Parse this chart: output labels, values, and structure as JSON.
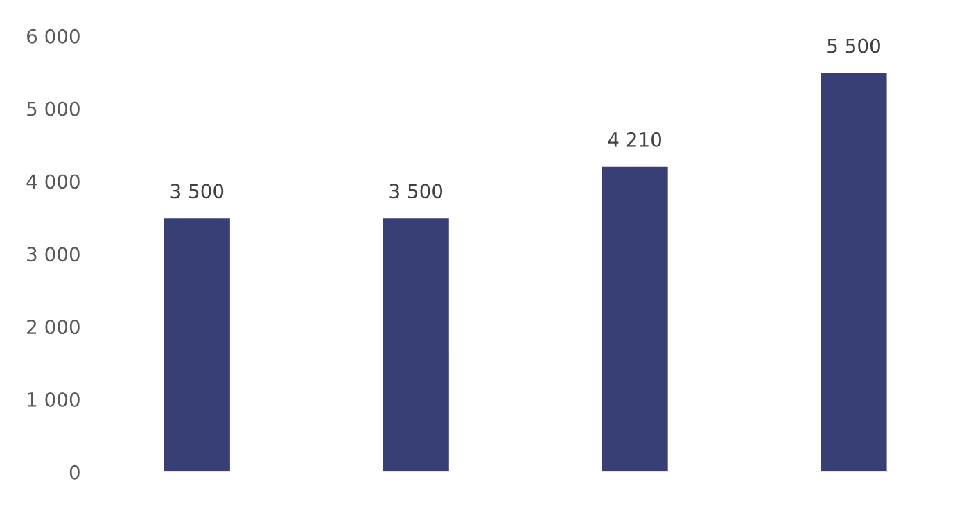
{
  "chart_data": {
    "type": "bar",
    "categories": [
      null,
      null,
      null,
      null
    ],
    "series": [
      {
        "color": "#373f75",
        "values": [
          3500,
          3500,
          4210,
          5500
        ]
      }
    ],
    "value_labels": [
      "3 500",
      "3 500",
      "4 210",
      "5 500"
    ],
    "ylim": [
      0,
      6000
    ],
    "yticks": [
      {
        "value": 0,
        "label": "0"
      },
      {
        "value": 1000,
        "label": "1 000"
      },
      {
        "value": 2000,
        "label": "2 000"
      },
      {
        "value": 3000,
        "label": "3 000"
      },
      {
        "value": 4000,
        "label": "4 000"
      },
      {
        "value": 5000,
        "label": "5 000"
      },
      {
        "value": 6000,
        "label": "6 000"
      }
    ],
    "grid": false,
    "legend": false
  }
}
